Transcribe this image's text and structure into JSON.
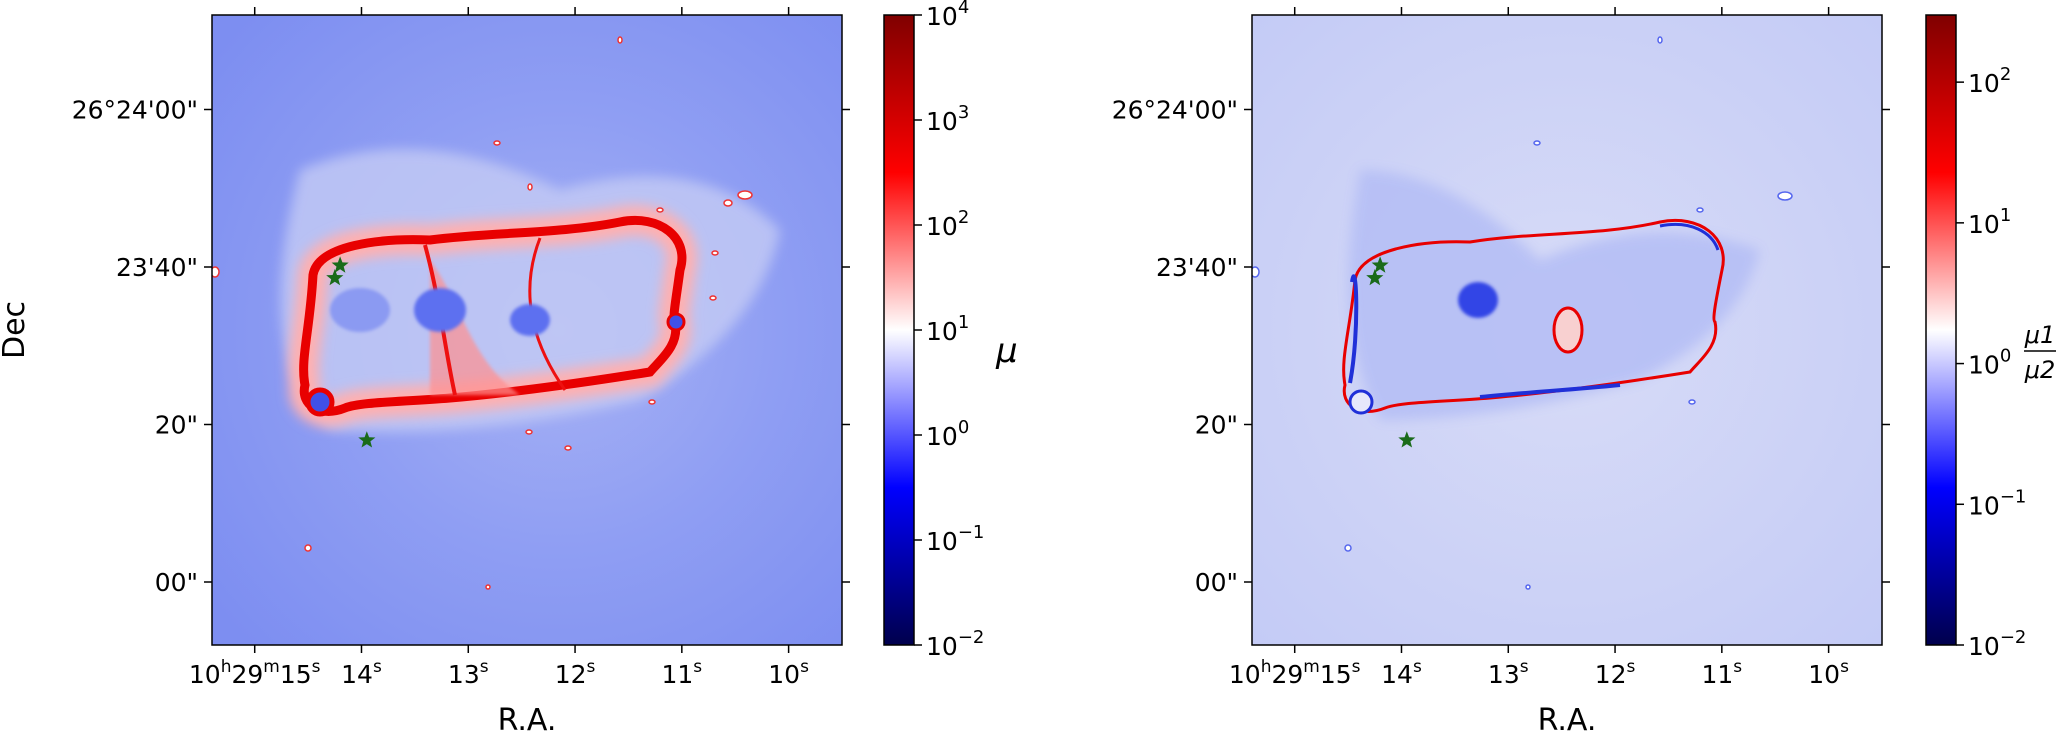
{
  "chart_data": [
    {
      "type": "heatmap",
      "title": "",
      "xlabel": "R.A.",
      "ylabel": "Dec",
      "x_ticks": [
        {
          "h": "10",
          "m": "29",
          "s": "15",
          "coord": 15
        },
        {
          "s": "14",
          "coord": 14
        },
        {
          "s": "13",
          "coord": 13
        },
        {
          "s": "12",
          "coord": 12
        },
        {
          "s": "11",
          "coord": 11
        },
        {
          "s": "10",
          "coord": 10
        }
      ],
      "xlim": [
        15.4,
        9.5
      ],
      "y_ticks": [
        {
          "label": "26°24'00\"",
          "coord": 60
        },
        {
          "label": "23'40\"",
          "coord": 40
        },
        {
          "label": "20\"",
          "coord": 20
        },
        {
          "label": "00\"",
          "coord": 0
        }
      ],
      "ylim": [
        -8,
        72
      ],
      "colorbar": {
        "label": "μ",
        "scale": "log",
        "range": [
          0.01,
          10000
        ],
        "ticks": [
          {
            "base": "10",
            "exp": "4",
            "value": 10000
          },
          {
            "base": "10",
            "exp": "3",
            "value": 1000
          },
          {
            "base": "10",
            "exp": "2",
            "value": 100
          },
          {
            "base": "10",
            "exp": "1",
            "value": 10
          },
          {
            "base": "10",
            "exp": "0",
            "value": 1
          },
          {
            "base": "10",
            "exp": "−1",
            "value": 0.1
          },
          {
            "base": "10",
            "exp": "−2",
            "value": 0.01
          }
        ],
        "colormap": "seismic"
      },
      "markers": [
        {
          "x": 14.2,
          "y": 40.2,
          "color": "#1a6b1a"
        },
        {
          "x": 14.25,
          "y": 38.6,
          "color": "#1a6b1a"
        },
        {
          "x": 13.95,
          "y": 18.0,
          "color": "#1a6b1a"
        }
      ]
    },
    {
      "type": "heatmap",
      "title": "",
      "xlabel": "R.A.",
      "ylabel": "",
      "x_ticks": [
        {
          "h": "10",
          "m": "29",
          "s": "15",
          "coord": 15
        },
        {
          "s": "14",
          "coord": 14
        },
        {
          "s": "13",
          "coord": 13
        },
        {
          "s": "12",
          "coord": 12
        },
        {
          "s": "11",
          "coord": 11
        },
        {
          "s": "10",
          "coord": 10
        }
      ],
      "xlim": [
        15.4,
        9.5
      ],
      "y_ticks": [
        {
          "label": "26°24'00\"",
          "coord": 60
        },
        {
          "label": "23'40\"",
          "coord": 40
        },
        {
          "label": "20\"",
          "coord": 20
        },
        {
          "label": "00\"",
          "coord": 0
        }
      ],
      "ylim": [
        -8,
        72
      ],
      "colorbar": {
        "label_num": "μ1",
        "label_den": "μ2",
        "scale": "log",
        "range": [
          0.01,
          300
        ],
        "ticks": [
          {
            "base": "10",
            "exp": "2",
            "value": 100
          },
          {
            "base": "10",
            "exp": "1",
            "value": 10
          },
          {
            "base": "10",
            "exp": "0",
            "value": 1
          },
          {
            "base": "10",
            "exp": "−1",
            "value": 0.1
          },
          {
            "base": "10",
            "exp": "−2",
            "value": 0.01
          }
        ],
        "colormap": "seismic"
      },
      "markers": [
        {
          "x": 14.2,
          "y": 40.2,
          "color": "#1a6b1a"
        },
        {
          "x": 14.25,
          "y": 38.6,
          "color": "#1a6b1a"
        },
        {
          "x": 13.95,
          "y": 18.0,
          "color": "#1a6b1a"
        }
      ]
    }
  ]
}
